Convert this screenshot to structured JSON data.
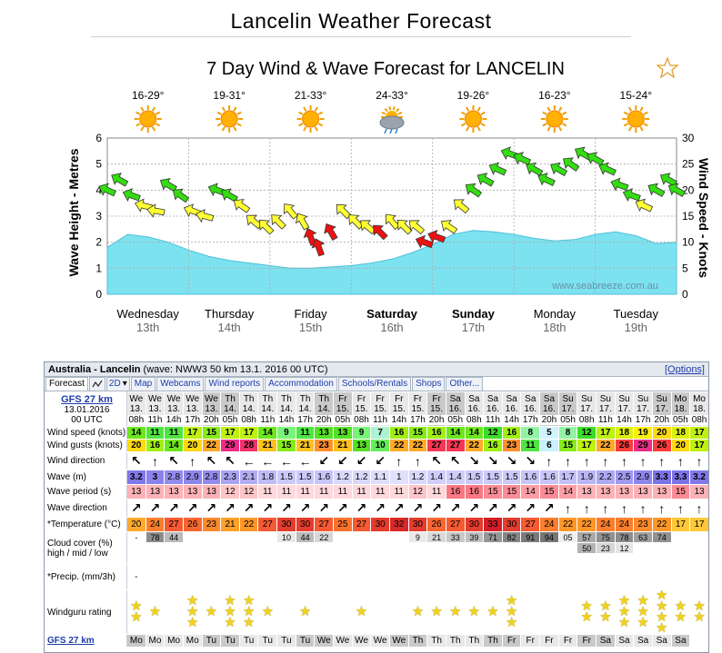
{
  "page": {
    "title": "Lancelin Weather Forecast"
  },
  "chart": {
    "title": "7 Day Wind & Wave Forecast for LANCELIN",
    "favorite_icon": "star-outline-icon",
    "left_axis_label": "Wave Height - Metres",
    "right_axis_label": "Wind Speed - Knots",
    "watermark": "www.seabreeze.com.au",
    "left_ticks": [
      "6",
      "5",
      "4",
      "3",
      "2",
      "1",
      "0"
    ],
    "right_ticks": [
      "30",
      "25",
      "20",
      "15",
      "10",
      "5",
      "0"
    ],
    "days": [
      {
        "name": "Wednesday",
        "date": "13th",
        "temps": "16-29°",
        "icon": "sun-icon",
        "bold": false
      },
      {
        "name": "Thursday",
        "date": "14th",
        "temps": "19-31°",
        "icon": "sun-icon",
        "bold": false
      },
      {
        "name": "Friday",
        "date": "15th",
        "temps": "21-33°",
        "icon": "sun-icon",
        "bold": false
      },
      {
        "name": "Saturday",
        "date": "16th",
        "temps": "24-33°",
        "icon": "storm-cloud-icon",
        "bold": true
      },
      {
        "name": "Sunday",
        "date": "17th",
        "temps": "19-26°",
        "icon": "sun-icon",
        "bold": true
      },
      {
        "name": "Monday",
        "date": "18th",
        "temps": "16-23°",
        "icon": "sun-icon",
        "bold": false
      },
      {
        "name": "Tuesday",
        "date": "19th",
        "temps": "15-24°",
        "icon": "sun-icon",
        "bold": false
      }
    ]
  },
  "chart_data": {
    "type": "area",
    "title": "7 Day Wind & Wave Forecast for LANCELIN",
    "xlabel": "",
    "ylabel": "Wave Height - Metres",
    "y2label": "Wind Speed - Knots",
    "ylim": [
      0,
      6
    ],
    "y2lim": [
      0,
      30
    ],
    "categories": [
      "Wednesday 13th",
      "Thursday 14th",
      "Friday 15th",
      "Saturday 16th",
      "Sunday 17th",
      "Monday 18th",
      "Tuesday 19th"
    ],
    "series": [
      {
        "name": "Wave height (m)",
        "type": "area",
        "axis": "left",
        "x": [
          0,
          0.25,
          0.5,
          0.75,
          1,
          1.25,
          1.5,
          1.75,
          2,
          2.25,
          2.5,
          2.75,
          3,
          3.25,
          3.5,
          3.75,
          4,
          4.25,
          4.5,
          4.75,
          5,
          5.25,
          5.5,
          5.75,
          6,
          6.25,
          6.5,
          6.75,
          7
        ],
        "values": [
          1.8,
          2.3,
          2.2,
          2.0,
          1.7,
          1.45,
          1.3,
          1.2,
          1.1,
          1.0,
          1.0,
          1.05,
          1.1,
          1.2,
          1.35,
          1.6,
          1.9,
          2.3,
          2.45,
          2.4,
          2.3,
          2.15,
          2.05,
          2.1,
          2.3,
          2.4,
          2.25,
          1.95,
          2.0
        ]
      },
      {
        "name": "Wind speed (knots)",
        "type": "arrows",
        "axis": "right",
        "x": [
          0,
          0.15,
          0.3,
          0.45,
          0.6,
          0.75,
          0.9,
          1.05,
          1.2,
          1.35,
          1.5,
          1.65,
          1.8,
          1.95,
          2.1,
          2.25,
          2.4,
          2.5,
          2.6,
          2.75,
          2.9,
          3.05,
          3.2,
          3.35,
          3.5,
          3.65,
          3.8,
          3.9,
          4.05,
          4.2,
          4.35,
          4.5,
          4.65,
          4.8,
          4.95,
          5.1,
          5.25,
          5.4,
          5.55,
          5.7,
          5.85,
          6,
          6.15,
          6.3,
          6.45,
          6.6,
          6.75,
          6.9,
          7
        ],
        "values": [
          20,
          22,
          19,
          17,
          16,
          21,
          19,
          16,
          15,
          20,
          19,
          17,
          14,
          13,
          14,
          16,
          14,
          11,
          9,
          12,
          16,
          14,
          13,
          12,
          14,
          13,
          13,
          10,
          11,
          13,
          17,
          20,
          22,
          24,
          27,
          26,
          24,
          22,
          24,
          25,
          27,
          26,
          24,
          21,
          19,
          17,
          20,
          22,
          20
        ],
        "directions_deg": [
          205,
          210,
          200,
          195,
          190,
          210,
          215,
          200,
          195,
          200,
          210,
          215,
          220,
          225,
          225,
          230,
          240,
          250,
          250,
          240,
          225,
          225,
          220,
          225,
          230,
          225,
          220,
          200,
          200,
          215,
          220,
          215,
          210,
          205,
          200,
          205,
          210,
          205,
          210,
          215,
          210,
          210,
          205,
          200,
          200,
          205,
          210,
          210,
          210
        ]
      }
    ]
  },
  "widget": {
    "location": "Australia - Lancelin",
    "meta": "(wave: NWW3 50 km 13.1. 2016 00 UTC)",
    "options_link": "[Options]",
    "tabs": [
      {
        "label": "Forecast",
        "active": true,
        "icon": false
      },
      {
        "label": "",
        "icon": true,
        "icon_name": "graph-icon"
      },
      {
        "label": "2D",
        "icon": true,
        "icon_name": "dropdown-icon"
      },
      {
        "label": "Map"
      },
      {
        "label": "Webcams"
      },
      {
        "label": "Wind reports"
      },
      {
        "label": "Accommodation"
      },
      {
        "label": "Schools/Rentals"
      },
      {
        "label": "Shops"
      },
      {
        "label": "Other..."
      }
    ],
    "model": "GFS 27 km",
    "model_date": "13.01.2016",
    "model_time": "00 UTC",
    "labels": {
      "wind_speed": "Wind speed (knots)",
      "wind_speed_unit": "knots",
      "wind_gusts": "Wind gusts (knots)",
      "wind_gusts_unit": "knots",
      "wind_direction": "Wind direction",
      "wave": "Wave (m)",
      "wave_unit": "m",
      "wave_period": "Wave period (s)",
      "wave_direction": "Wave direction",
      "temperature": "*Temperature (°C)",
      "temperature_unit": "°C",
      "cloud_line1": "Cloud cover (%)",
      "cloud_line2": "high / mid / low",
      "precip": "*Precip. (mm/3h)",
      "rating": "Windguru rating"
    },
    "columns": [
      {
        "d": "We",
        "dt": "13.",
        "t": "08h",
        "ws": 14,
        "wg": 20,
        "wd": "↖",
        "wv": "3.2",
        "wp": 13,
        "wvd": "↗",
        "tmp": 20,
        "ch": "-",
        "cm": "",
        "cl": "",
        "pr": "-",
        "st": 2,
        "n": false,
        "fd": "Mo"
      },
      {
        "d": "We",
        "dt": "13.",
        "t": "11h",
        "ws": 11,
        "wg": 16,
        "wd": "↑",
        "wv": "3",
        "wp": 13,
        "wvd": "↗",
        "tmp": 24,
        "ch": "78",
        "cm": "",
        "cl": "",
        "pr": "",
        "st": 1,
        "n": false,
        "fd": "Mo"
      },
      {
        "d": "We",
        "dt": "13.",
        "t": "14h",
        "ws": 11,
        "wg": 14,
        "wd": "↖",
        "wv": "2.8",
        "wp": 13,
        "wvd": "↗",
        "tmp": 27,
        "ch": "44",
        "cm": "",
        "cl": "",
        "pr": "",
        "st": 0,
        "n": false,
        "fd": "Mo"
      },
      {
        "d": "We",
        "dt": "13.",
        "t": "17h",
        "ws": 17,
        "wg": 20,
        "wd": "↑",
        "wv": "2.9",
        "wp": 13,
        "wvd": "↗",
        "tmp": 26,
        "ch": "",
        "cm": "",
        "cl": "",
        "pr": "",
        "st": 3,
        "n": false,
        "fd": "Mo"
      },
      {
        "d": "We",
        "dt": "13.",
        "t": "20h",
        "ws": 15,
        "wg": 22,
        "wd": "↖",
        "wv": "2.8",
        "wp": 13,
        "wvd": "↗",
        "tmp": 23,
        "ch": "",
        "cm": "",
        "cl": "",
        "pr": "",
        "st": 1,
        "n": true,
        "fd": "Tu"
      },
      {
        "d": "Th",
        "dt": "14.",
        "t": "05h",
        "ws": 17,
        "wg": 29,
        "wd": "↖",
        "wv": "2.3",
        "wp": 12,
        "wvd": "↗",
        "tmp": 21,
        "ch": "",
        "cm": "",
        "cl": "",
        "pr": "",
        "st": 3,
        "n": true,
        "fd": "Tu"
      },
      {
        "d": "Th",
        "dt": "14.",
        "t": "08h",
        "ws": 17,
        "wg": 28,
        "wd": "←",
        "wv": "2.1",
        "wp": 12,
        "wvd": "↗",
        "tmp": 22,
        "ch": "",
        "cm": "",
        "cl": "",
        "pr": "",
        "st": 3,
        "n": false,
        "fd": "Tu"
      },
      {
        "d": "Th",
        "dt": "14.",
        "t": "11h",
        "ws": 14,
        "wg": 21,
        "wd": "←",
        "wv": "1.8",
        "wp": 11,
        "wvd": "↗",
        "tmp": 27,
        "ch": "",
        "cm": "",
        "cl": "",
        "pr": "",
        "st": 1,
        "n": false,
        "fd": "Tu"
      },
      {
        "d": "Th",
        "dt": "14.",
        "t": "14h",
        "ws": 9,
        "wg": 15,
        "wd": "←",
        "wv": "1.5",
        "wp": 11,
        "wvd": "↗",
        "tmp": 30,
        "ch": "10",
        "cm": "",
        "cl": "",
        "pr": "",
        "st": 0,
        "n": false,
        "fd": "Tu"
      },
      {
        "d": "Th",
        "dt": "14.",
        "t": "17h",
        "ws": 11,
        "wg": 21,
        "wd": "←",
        "wv": "1.5",
        "wp": 11,
        "wvd": "↗",
        "tmp": 30,
        "ch": "44",
        "cm": "",
        "cl": "",
        "pr": "",
        "st": 1,
        "n": false,
        "fd": "Tu"
      },
      {
        "d": "Th",
        "dt": "14.",
        "t": "20h",
        "ws": 13,
        "wg": 23,
        "wd": "↙",
        "wv": "1.6",
        "wp": 11,
        "wvd": "↗",
        "tmp": 27,
        "ch": "22",
        "cm": "",
        "cl": "",
        "pr": "",
        "st": 0,
        "n": true,
        "fd": "We"
      },
      {
        "d": "Fr",
        "dt": "15.",
        "t": "05h",
        "ws": 13,
        "wg": 21,
        "wd": "↙",
        "wv": "1.2",
        "wp": 11,
        "wvd": "↗",
        "tmp": 25,
        "ch": "",
        "cm": "",
        "cl": "",
        "pr": "",
        "st": 0,
        "n": true,
        "fd": "We"
      },
      {
        "d": "Fr",
        "dt": "15.",
        "t": "08h",
        "ws": 9,
        "wg": 13,
        "wd": "↙",
        "wv": "1.2",
        "wp": 11,
        "wvd": "↗",
        "tmp": 27,
        "ch": "",
        "cm": "",
        "cl": "",
        "pr": "",
        "st": 1,
        "n": false,
        "fd": "We"
      },
      {
        "d": "Fr",
        "dt": "15.",
        "t": "11h",
        "ws": 7,
        "wg": 10,
        "wd": "↙",
        "wv": "1.1",
        "wp": 11,
        "wvd": "↗",
        "tmp": 30,
        "ch": "",
        "cm": "",
        "cl": "",
        "pr": "",
        "st": 0,
        "n": false,
        "fd": "We"
      },
      {
        "d": "Fr",
        "dt": "15.",
        "t": "14h",
        "ws": 16,
        "wg": 22,
        "wd": "↑",
        "wv": "1",
        "wp": 11,
        "wvd": "↗",
        "tmp": 32,
        "ch": "",
        "cm": "",
        "cl": "",
        "pr": "",
        "st": 0,
        "n": false,
        "fd": "We"
      },
      {
        "d": "Fr",
        "dt": "15.",
        "t": "17h",
        "ws": 15,
        "wg": 22,
        "wd": "↑",
        "wv": "1.2",
        "wp": 12,
        "wvd": "↗",
        "tmp": 30,
        "ch": "9",
        "cm": "",
        "cl": "",
        "pr": "",
        "st": 1,
        "n": false,
        "fd": "Th"
      },
      {
        "d": "Fr",
        "dt": "15.",
        "t": "20h",
        "ws": 16,
        "wg": 27,
        "wd": "↖",
        "wv": "1.4",
        "wp": 11,
        "wvd": "↗",
        "tmp": 26,
        "ch": "21",
        "cm": "",
        "cl": "",
        "pr": "",
        "st": 1,
        "n": true,
        "fd": "Th"
      },
      {
        "d": "Sa",
        "dt": "16.",
        "t": "05h",
        "ws": 14,
        "wg": 27,
        "wd": "↖",
        "wv": "1.4",
        "wp": 16,
        "wvd": "↗",
        "tmp": 27,
        "ch": "33",
        "cm": "",
        "cl": "",
        "pr": "",
        "st": 1,
        "n": true,
        "fd": "Th"
      },
      {
        "d": "Sa",
        "dt": "16.",
        "t": "08h",
        "ws": 14,
        "wg": 22,
        "wd": "↘",
        "wv": "1.5",
        "wp": 16,
        "wvd": "↗",
        "tmp": 30,
        "ch": "39",
        "cm": "",
        "cl": "",
        "pr": "",
        "st": 1,
        "n": false,
        "fd": "Th"
      },
      {
        "d": "Sa",
        "dt": "16.",
        "t": "11h",
        "ws": 12,
        "wg": 16,
        "wd": "↘",
        "wv": "1.5",
        "wp": 15,
        "wvd": "↗",
        "tmp": 33,
        "ch": "71",
        "cm": "",
        "cl": "",
        "pr": "",
        "st": 1,
        "n": false,
        "fd": "Th"
      },
      {
        "d": "Sa",
        "dt": "16.",
        "t": "14h",
        "ws": 16,
        "wg": 23,
        "wd": "↘",
        "wv": "1.5",
        "wp": 15,
        "wvd": "↗",
        "tmp": 30,
        "ch": "82",
        "cm": "",
        "cl": "",
        "pr": "",
        "st": 3,
        "n": false,
        "fd": "Fr"
      },
      {
        "d": "Sa",
        "dt": "16.",
        "t": "17h",
        "ws": 8,
        "wg": 11,
        "wd": "↘",
        "wv": "1.6",
        "wp": 14,
        "wvd": "↗",
        "tmp": 27,
        "ch": "91",
        "cm": "",
        "cl": "",
        "pr": "",
        "st": 0,
        "n": false,
        "fd": "Fr"
      },
      {
        "d": "Sa",
        "dt": "16.",
        "t": "20h",
        "ws": 5,
        "wg": 6,
        "wd": "↑",
        "wv": "1.6",
        "wp": 15,
        "wvd": "↗",
        "tmp": 24,
        "ch": "94",
        "cm": "",
        "cl": "",
        "pr": "",
        "st": 0,
        "n": true,
        "fd": "Fr"
      },
      {
        "d": "Su",
        "dt": "17.",
        "t": "05h",
        "ws": 8,
        "wg": 15,
        "wd": "↑",
        "wv": "1.7",
        "wp": 14,
        "wvd": "↑",
        "tmp": 22,
        "ch": "05",
        "cm": "",
        "cl": "",
        "pr": "",
        "st": 0,
        "n": true,
        "fd": "Fr"
      },
      {
        "d": "Su",
        "dt": "17.",
        "t": "08h",
        "ws": 12,
        "wg": 17,
        "wd": "↑",
        "wv": "1.9",
        "wp": 13,
        "wvd": "↑",
        "tmp": 22,
        "ch": "57",
        "cm": "50",
        "cl": "",
        "pr": "",
        "st": 2,
        "n": false,
        "fd": "Fr"
      },
      {
        "d": "Su",
        "dt": "17.",
        "t": "11h",
        "ws": 17,
        "wg": 22,
        "wd": "↑",
        "wv": "2.2",
        "wp": 13,
        "wvd": "↑",
        "tmp": 24,
        "ch": "75",
        "cm": "23",
        "cl": "",
        "pr": "",
        "st": 2,
        "n": false,
        "fd": "Sa"
      },
      {
        "d": "Su",
        "dt": "17.",
        "t": "14h",
        "ws": 18,
        "wg": 26,
        "wd": "↑",
        "wv": "2.5",
        "wp": 13,
        "wvd": "↑",
        "tmp": 24,
        "ch": "78",
        "cm": "12",
        "cl": "",
        "pr": "",
        "st": 3,
        "n": false,
        "fd": "Sa"
      },
      {
        "d": "Su",
        "dt": "17.",
        "t": "17h",
        "ws": 19,
        "wg": 29,
        "wd": "↑",
        "wv": "2.9",
        "wp": 13,
        "wvd": "↑",
        "tmp": 23,
        "ch": "63",
        "cm": "",
        "cl": "",
        "pr": "",
        "st": 3,
        "n": false,
        "fd": "Sa"
      },
      {
        "d": "Su",
        "dt": "17.",
        "t": "20h",
        "ws": 20,
        "wg": 26,
        "wd": "↑",
        "wv": "3.3",
        "wp": 13,
        "wvd": "↑",
        "tmp": 22,
        "ch": "74",
        "cm": "",
        "cl": "",
        "pr": "",
        "st": 4,
        "n": true,
        "fd": "Sa"
      },
      {
        "d": "Mo",
        "dt": "18.",
        "t": "05h",
        "ws": 18,
        "wg": 20,
        "wd": "↑",
        "wv": "3.3",
        "wp": 15,
        "wvd": "↑",
        "tmp": 17,
        "ch": "",
        "cm": "",
        "cl": "",
        "pr": "",
        "st": 2,
        "n": true,
        "fd": "Sa"
      },
      {
        "d": "Mo",
        "dt": "18.",
        "t": "08h",
        "ws": 17,
        "wg": 17,
        "wd": "↑",
        "wv": "3.2",
        "wp": 13,
        "wvd": "↑",
        "tmp": 17,
        "ch": "",
        "cm": "",
        "cl": "",
        "pr": "",
        "st": 2,
        "n": false,
        "fd": ""
      }
    ]
  },
  "colors": {
    "wave_fill": "#7de2f0",
    "plot_bg": "#ffffff",
    "wind_light": "#ffff33",
    "wind_mid": "#33dd11",
    "wind_strong": "#ee1111"
  }
}
